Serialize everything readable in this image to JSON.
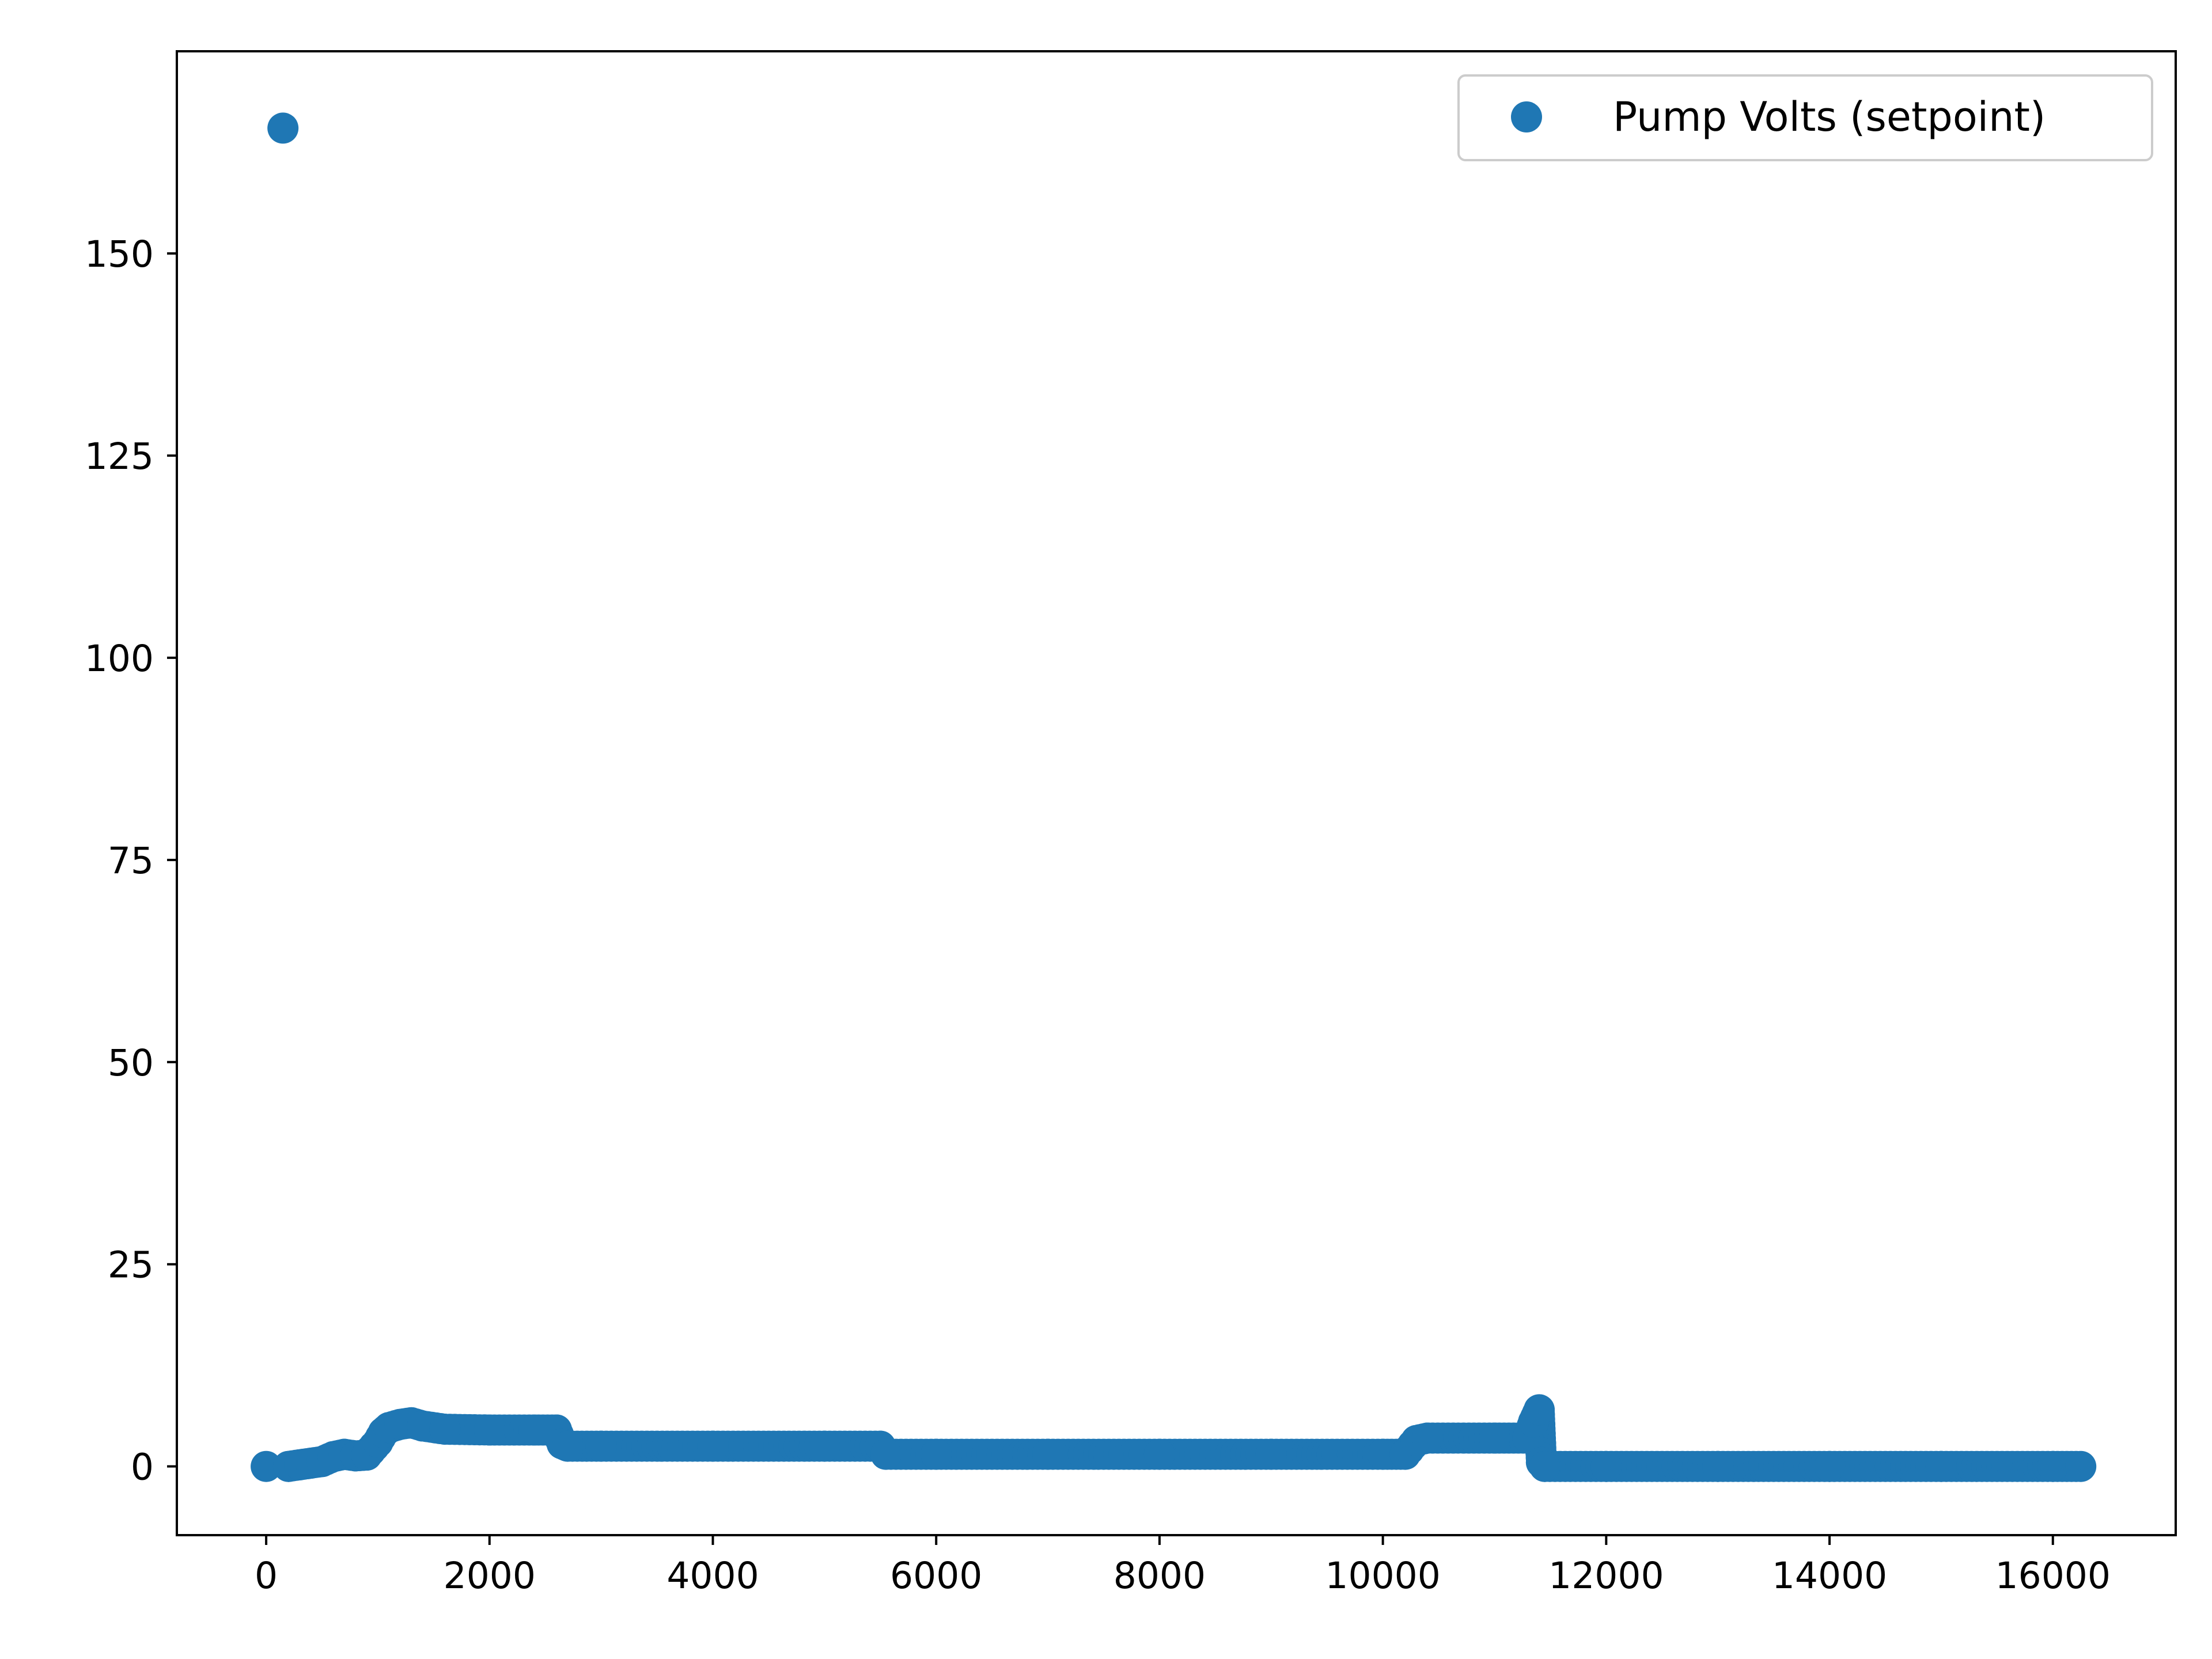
{
  "chart_data": {
    "type": "scatter",
    "title": "",
    "xlabel": "",
    "ylabel": "",
    "xlim": [
      -800,
      17100
    ],
    "ylim": [
      -8.5,
      175
    ],
    "xticks": [
      0,
      2000,
      4000,
      6000,
      8000,
      10000,
      12000,
      14000,
      16000
    ],
    "yticks": [
      0,
      25,
      50,
      75,
      100,
      125,
      150
    ],
    "grid": false,
    "legend": {
      "position": "top-right"
    },
    "series": [
      {
        "name": "Pump Volts (setpoint)",
        "color": "#1f77b4",
        "marker": "circle",
        "x": [
          0,
          150,
          200,
          300,
          400,
          500,
          600,
          700,
          800,
          900,
          1000,
          1050,
          1100,
          1200,
          1300,
          1400,
          1600,
          2000,
          2400,
          2600,
          2650,
          2700,
          3000,
          4000,
          5000,
          5500,
          5550,
          6000,
          7000,
          8000,
          9000,
          10000,
          10200,
          10300,
          10400,
          11000,
          11300,
          11350,
          11400,
          11420,
          11450,
          12000,
          13000,
          14000,
          15000,
          16000,
          16250
        ],
        "y": [
          0,
          165.5,
          0,
          0.2,
          0.4,
          0.6,
          1.2,
          1.5,
          1.3,
          1.4,
          3.0,
          4.2,
          4.8,
          5.2,
          5.4,
          5.0,
          4.6,
          4.5,
          4.5,
          4.5,
          2.8,
          2.5,
          2.5,
          2.5,
          2.5,
          2.5,
          1.5,
          1.5,
          1.5,
          1.5,
          1.5,
          1.5,
          1.5,
          3.2,
          3.5,
          3.5,
          3.5,
          5.5,
          7.0,
          0.5,
          0,
          0,
          0,
          0,
          0,
          0,
          0
        ]
      }
    ]
  }
}
